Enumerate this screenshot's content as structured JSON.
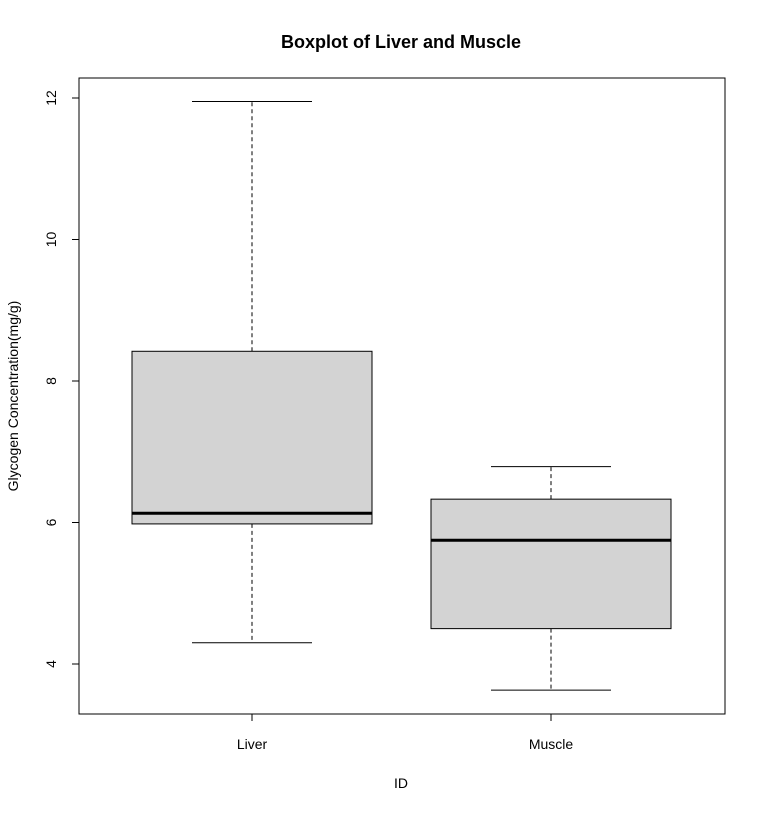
{
  "chart_data": {
    "type": "box",
    "title": "Boxplot of Liver and Muscle",
    "xlabel": "ID",
    "ylabel": "Glycogen Concentration(mg/g)",
    "ylim": [
      3.3,
      12.3
    ],
    "yticks": [
      4,
      6,
      8,
      10,
      12
    ],
    "categories": [
      "Liver",
      "Muscle"
    ],
    "boxes": [
      {
        "category": "Liver",
        "min": 4.3,
        "q1": 5.98,
        "median": 6.13,
        "q3": 8.42,
        "max": 11.95
      },
      {
        "category": "Muscle",
        "min": 3.63,
        "q1": 4.5,
        "median": 5.75,
        "q3": 6.33,
        "max": 6.79
      }
    ],
    "box_fill": "#d3d3d3",
    "line_color": "#000000",
    "grid": false
  }
}
